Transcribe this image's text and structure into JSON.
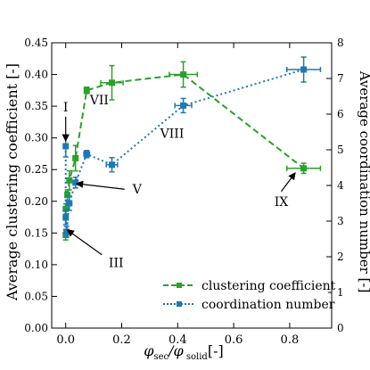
{
  "chart_data": {
    "type": "scatter",
    "xlabel_main": "φ",
    "xlabel_sub1": "sec",
    "xlabel_mid": "/φ",
    "xlabel_sub2": " solid",
    "xlabel_tail": "[-]",
    "ylabel_left": "Average clustering coefficient [-]",
    "ylabel_right": "Average coordination number [-]",
    "xlim": [
      -0.05,
      0.95
    ],
    "ylim_left": [
      0.0,
      0.45
    ],
    "ylim_right": [
      0,
      8
    ],
    "xticks": [
      0.0,
      0.2,
      0.4,
      0.6,
      0.8
    ],
    "xtick_labels": [
      "0.0",
      "0.2",
      "0.4",
      "0.6",
      "0.8"
    ],
    "yticks_left": [
      0.0,
      0.05,
      0.1,
      0.15,
      0.2,
      0.25,
      0.3,
      0.35,
      0.4,
      0.45
    ],
    "ytick_labels_left": [
      "0.00",
      "0.05",
      "0.10",
      "0.15",
      "0.20",
      "0.25",
      "0.30",
      "0.35",
      "0.40",
      "0.45"
    ],
    "yticks_right": [
      0,
      1,
      2,
      3,
      4,
      5,
      6,
      7,
      8
    ],
    "ytick_labels_right": [
      "0",
      "1",
      "2",
      "3",
      "4",
      "5",
      "6",
      "7",
      "8"
    ],
    "series": [
      {
        "name": "clustering coefficient",
        "axis": "left",
        "color": "#2ca02c",
        "style": "dashed",
        "marker": "square",
        "points": [
          {
            "x": 0.0,
            "y": 0.147,
            "xerr": 0.005,
            "yerr": 0.008
          },
          {
            "x": 0.0,
            "y": 0.188,
            "xerr": 0.005,
            "yerr": 0.008
          },
          {
            "x": 0.006,
            "y": 0.21,
            "xerr": 0.006,
            "yerr": 0.008
          },
          {
            "x": 0.013,
            "y": 0.233,
            "xerr": 0.006,
            "yerr": 0.015
          },
          {
            "x": 0.035,
            "y": 0.268,
            "xerr": 0.008,
            "yerr": 0.02
          },
          {
            "x": 0.075,
            "y": 0.375,
            "xerr": 0.008,
            "yerr": 0.005
          },
          {
            "x": 0.165,
            "y": 0.387,
            "xerr": 0.04,
            "yerr": 0.027
          },
          {
            "x": 0.42,
            "y": 0.4,
            "xerr": 0.05,
            "yerr": 0.02
          },
          {
            "x": 0.85,
            "y": 0.252,
            "xerr": 0.06,
            "yerr": 0.008
          }
        ]
      },
      {
        "name": "coordination number",
        "axis": "right",
        "color": "#1f77b4",
        "style": "dotted",
        "marker": "square",
        "points": [
          {
            "x": 0.0,
            "y": 5.1,
            "xerr": 0.006,
            "yerr": 0.3
          },
          {
            "x": 0.0,
            "y": 3.1,
            "xerr": 0.006,
            "yerr": 0.2
          },
          {
            "x": 0.003,
            "y": 2.7,
            "xerr": 0.006,
            "yerr": 0.15
          },
          {
            "x": 0.013,
            "y": 3.5,
            "xerr": 0.006,
            "yerr": 0.2
          },
          {
            "x": 0.035,
            "y": 4.08,
            "xerr": 0.008,
            "yerr": 0.15
          },
          {
            "x": 0.075,
            "y": 4.88,
            "xerr": 0.01,
            "yerr": 0.1
          },
          {
            "x": 0.165,
            "y": 4.58,
            "xerr": 0.02,
            "yerr": 0.2
          },
          {
            "x": 0.42,
            "y": 6.24,
            "xerr": 0.03,
            "yerr": 0.2
          },
          {
            "x": 0.85,
            "y": 7.25,
            "xerr": 0.06,
            "yerr": 0.35
          }
        ]
      }
    ],
    "annotations": [
      {
        "label": "I",
        "text_x": 0.0,
        "text_y": 0.342,
        "arrow_to": [
          0.0,
          0.295
        ],
        "axis": "left"
      },
      {
        "label": "VII",
        "text_x": 0.12,
        "text_y": 0.353,
        "axis": "left"
      },
      {
        "label": "VIII",
        "text_x": 0.38,
        "text_y": 0.3,
        "axis": "left"
      },
      {
        "label": "V",
        "text_x": 0.255,
        "text_y": 0.212,
        "arrow_to": [
          0.038,
          0.228
        ],
        "axis": "left"
      },
      {
        "label": "IX",
        "text_x": 0.77,
        "text_y": 0.193,
        "arrow_to": [
          0.82,
          0.245
        ],
        "axis": "left"
      },
      {
        "label": "III",
        "text_x": 0.18,
        "text_y": 0.096,
        "arrow_to": [
          0.005,
          0.155
        ],
        "axis": "left"
      }
    ],
    "legend_position": "lower-right"
  }
}
